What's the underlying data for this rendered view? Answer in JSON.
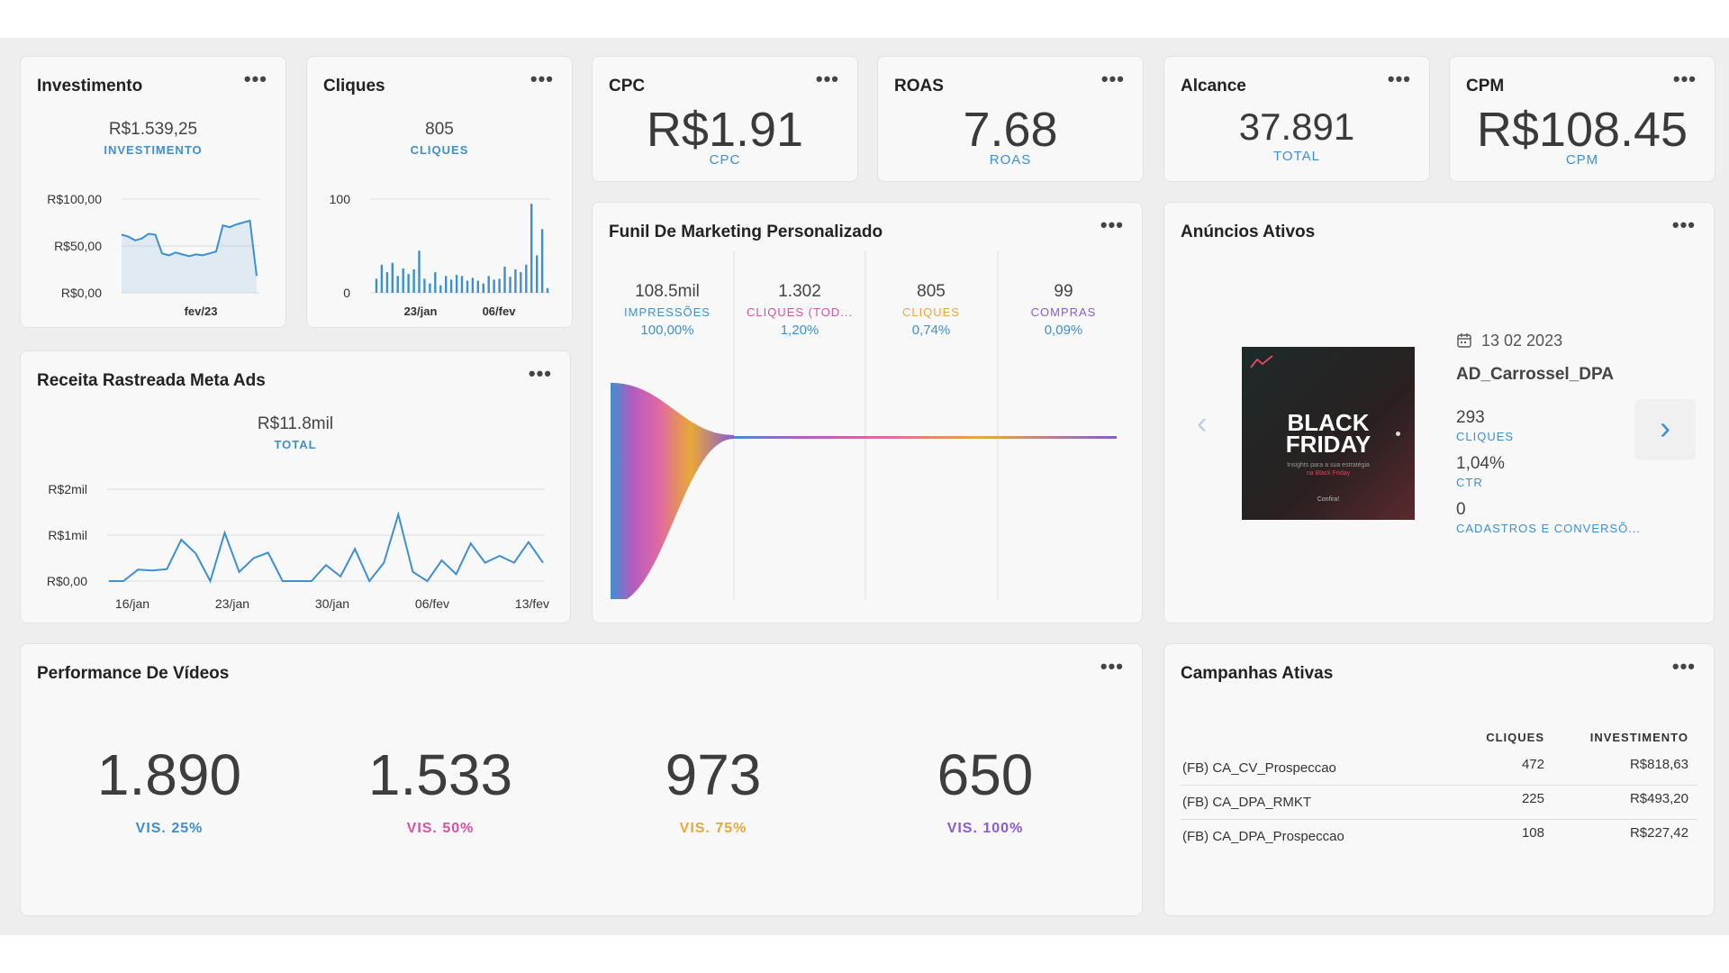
{
  "cards": {
    "investimento": {
      "title": "Investimento",
      "value": "R$1.539,25",
      "label": "INVESTIMENTO",
      "y_ticks": [
        "R$100,00",
        "R$50,00",
        "R$0,00"
      ],
      "x_tick": "fev/23"
    },
    "cliques": {
      "title": "Cliques",
      "value": "805",
      "label": "CLIQUES",
      "y_ticks": [
        "100",
        "0"
      ],
      "x_ticks": [
        "23/jan",
        "06/fev"
      ]
    },
    "cpc": {
      "title": "CPC",
      "value": "R$1.91",
      "label": "CPC"
    },
    "roas": {
      "title": "ROAS",
      "value": "7.68",
      "label": "ROAS"
    },
    "alcance": {
      "title": "Alcance",
      "value": "37.891",
      "label": "TOTAL"
    },
    "cpm": {
      "title": "CPM",
      "value": "R$108.45",
      "label": "CPM"
    },
    "receita": {
      "title": "Receita Rastreada Meta Ads",
      "value": "R$11.8mil",
      "label": "TOTAL",
      "y_ticks": [
        "R$2mil",
        "R$1mil",
        "R$0,00"
      ],
      "x_ticks": [
        "16/jan",
        "23/jan",
        "30/jan",
        "06/fev",
        "13/fev"
      ]
    },
    "funil": {
      "title": "Funil De Marketing Personalizado",
      "steps": [
        {
          "value": "108.5mil",
          "label": "IMPRESSÕES",
          "pct": "100,00%",
          "color": "#3d8fd1"
        },
        {
          "value": "1.302",
          "label": "CLIQUES (TOD...",
          "pct": "1,20%",
          "color": "#d652a6"
        },
        {
          "value": "805",
          "label": "CLIQUES",
          "pct": "0,74%",
          "color": "#e8a838"
        },
        {
          "value": "99",
          "label": "COMPRAS",
          "pct": "0,09%",
          "color": "#8a5ad6"
        }
      ],
      "pct_color": "#3d8fd1"
    },
    "anuncios": {
      "title": "Anúncios Ativos",
      "date": "13 02 2023",
      "ad_name": "AD_Carrossel_DPA",
      "creative_line1": "BLACK",
      "creative_line2": "FRIDAY",
      "creative_sub1": "Insights para a sua estratégia",
      "creative_sub2": "na Black Friday",
      "creative_cta": "Confira!",
      "metrics": [
        {
          "value": "293",
          "label": "CLIQUES"
        },
        {
          "value": "1,04%",
          "label": "CTR"
        },
        {
          "value": "0",
          "label": "CADASTROS E CONVERSÕ..."
        }
      ]
    },
    "videos": {
      "title": "Performance De Vídeos",
      "items": [
        {
          "value": "1.890",
          "label": "VIS. 25%",
          "color": "#3d8fd1"
        },
        {
          "value": "1.533",
          "label": "VIS. 50%",
          "color": "#d652a6"
        },
        {
          "value": "973",
          "label": "VIS. 75%",
          "color": "#e8a838"
        },
        {
          "value": "650",
          "label": "VIS. 100%",
          "color": "#8a5ad6"
        }
      ]
    },
    "campanhas": {
      "title": "Campanhas Ativas",
      "headers": [
        "CLIQUES",
        "INVESTIMENTO"
      ],
      "rows": [
        {
          "name": "(FB) CA_CV_Prospeccao",
          "cliques": "472",
          "investimento": "R$818,63"
        },
        {
          "name": "(FB) CA_DPA_RMKT",
          "cliques": "225",
          "investimento": "R$493,20"
        },
        {
          "name": "(FB) CA_DPA_Prospeccao",
          "cliques": "108",
          "investimento": "R$227,42"
        }
      ]
    }
  },
  "more_label": "•••",
  "colors": {
    "accent": "#3d8fd1",
    "pink": "#d652a6",
    "orange": "#e8a838",
    "purple": "#8a5ad6"
  },
  "chart_data": [
    {
      "type": "area",
      "title": "Investimento",
      "ylim": [
        0,
        100
      ],
      "y_ticks": [
        "R$100,00",
        "R$50,00",
        "R$0,00"
      ],
      "x_ticks": [
        "fev/23"
      ],
      "values": [
        62,
        60,
        56,
        58,
        63,
        62,
        42,
        40,
        43,
        41,
        39,
        41,
        40,
        42,
        44,
        72,
        70,
        73,
        75,
        77,
        18
      ]
    },
    {
      "type": "bar",
      "title": "Cliques",
      "ylim": [
        0,
        100
      ],
      "y_ticks": [
        "100",
        "0"
      ],
      "x_ticks": [
        "23/jan",
        "06/fev"
      ],
      "values": [
        15,
        30,
        22,
        32,
        18,
        26,
        20,
        25,
        45,
        15,
        10,
        22,
        8,
        18,
        14,
        19,
        18,
        13,
        16,
        13,
        10,
        18,
        14,
        15,
        28,
        17,
        25,
        22,
        30,
        95,
        40,
        68,
        5
      ]
    },
    {
      "type": "line",
      "title": "Receita Rastreada Meta Ads",
      "ylim": [
        0,
        2000
      ],
      "y_ticks": [
        "R$2mil",
        "R$1mil",
        "R$0,00"
      ],
      "x_ticks": [
        "16/jan",
        "23/jan",
        "30/jan",
        "06/fev",
        "13/fev"
      ],
      "values": [
        0,
        0,
        250,
        230,
        260,
        900,
        600,
        0,
        1050,
        200,
        500,
        620,
        0,
        0,
        0,
        350,
        100,
        700,
        0,
        400,
        1450,
        200,
        0,
        450,
        150,
        820,
        400,
        550,
        400,
        850,
        400
      ]
    }
  ]
}
